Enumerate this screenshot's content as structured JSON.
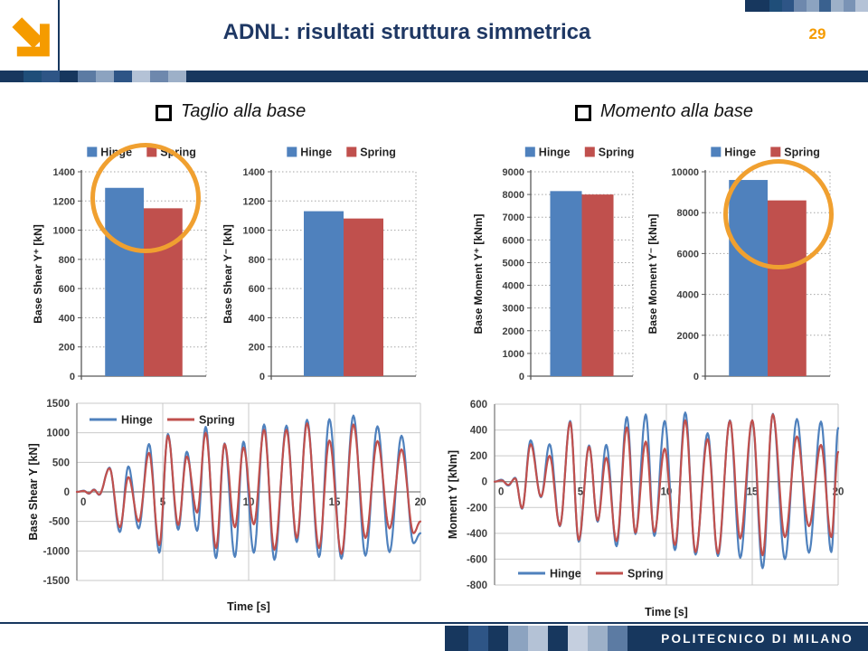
{
  "header": {
    "title": "ADNL: risultati struttura simmetrica",
    "page_number": "29"
  },
  "sections": {
    "left_label": "Taglio alla base",
    "right_label": "Momento alla base"
  },
  "footer": {
    "brand": "POLITECNICO DI MILANO"
  },
  "colors": {
    "navy": "#17375E",
    "title_navy": "#1F3864",
    "accent_orange": "#F59B00",
    "highlight_circle": "#F0A030",
    "hinge_blue": "#4F81BD",
    "spring_red": "#C0504D"
  },
  "decor": {
    "top_right_strip": [
      "#17375E",
      "#17375E",
      "#1F4E79",
      "#2E5586",
      "#6E88AD",
      "#8CA3C0",
      "#3A618F",
      "#9DB0C8",
      "#7A93B5",
      "#B4C2D6"
    ],
    "header_bar_strip": [
      "#1F4E79",
      "#2E5586",
      "#17375E",
      "#5C7BA3",
      "#8CA3C0",
      "#2E5586",
      "#B4C2D6",
      "#6E88AD",
      "#9DB0C8"
    ],
    "footer_strip": [
      "#17375E",
      "#2E5586",
      "#17375E",
      "#8CA3C0",
      "#B4C2D6",
      "#17375E",
      "#C5CFDF",
      "#9DB0C8",
      "#5C7BA3"
    ]
  },
  "chart_data": [
    {
      "id": "base-shear-yplus",
      "type": "bar",
      "ylabel": "Base Shear Y⁺ [kN]",
      "ylim": [
        0,
        1400
      ],
      "ystep": 200,
      "categories": [
        ""
      ],
      "legend_position": "top",
      "grid": "dotted",
      "series": [
        {
          "name": "Hinge",
          "color": "#4F81BD",
          "values": [
            1290
          ]
        },
        {
          "name": "Spring",
          "color": "#C0504D",
          "values": [
            1150
          ]
        }
      ]
    },
    {
      "id": "base-shear-yminus",
      "type": "bar",
      "ylabel": "Base Shear Y⁻ [kN]",
      "ylim": [
        0,
        1400
      ],
      "ystep": 200,
      "categories": [
        ""
      ],
      "legend_position": "top",
      "grid": "dotted",
      "series": [
        {
          "name": "Hinge",
          "color": "#4F81BD",
          "values": [
            1130
          ]
        },
        {
          "name": "Spring",
          "color": "#C0504D",
          "values": [
            1080
          ]
        }
      ]
    },
    {
      "id": "base-moment-yplus",
      "type": "bar",
      "ylabel": "Base Moment Y⁺ [kNm]",
      "ylim": [
        0,
        9000
      ],
      "ystep": 1000,
      "categories": [
        ""
      ],
      "legend_position": "top",
      "grid": "dotted",
      "series": [
        {
          "name": "Hinge",
          "color": "#4F81BD",
          "values": [
            8150
          ]
        },
        {
          "name": "Spring",
          "color": "#C0504D",
          "values": [
            8000
          ]
        }
      ]
    },
    {
      "id": "base-moment-yminus",
      "type": "bar",
      "ylabel": "Base Moment Y⁻ [kNm]",
      "ylim": [
        0,
        10000
      ],
      "ystep": 2000,
      "categories": [
        ""
      ],
      "legend_position": "top",
      "grid": "dotted",
      "series": [
        {
          "name": "Hinge",
          "color": "#4F81BD",
          "values": [
            9600
          ]
        },
        {
          "name": "Spring",
          "color": "#C0504D",
          "values": [
            8600
          ]
        }
      ]
    },
    {
      "id": "base-shear-time-history",
      "type": "line",
      "ylabel": "Base Shear Y [kN]",
      "xlabel": "Time [s]",
      "ylim": [
        -1500,
        1500
      ],
      "ystep": 500,
      "xlim": [
        0,
        20
      ],
      "xstep": 5,
      "legend_position": "top-left",
      "grid": "solid",
      "series": [
        {
          "name": "Hinge",
          "color": "#4F81BD",
          "points": [
            [
              0,
              0
            ],
            [
              0.4,
              20
            ],
            [
              0.7,
              -30
            ],
            [
              1.0,
              40
            ],
            [
              1.3,
              -50
            ],
            [
              1.9,
              410
            ],
            [
              2.5,
              -680
            ],
            [
              3.0,
              430
            ],
            [
              3.6,
              -620
            ],
            [
              4.2,
              810
            ],
            [
              4.8,
              -1030
            ],
            [
              5.3,
              980
            ],
            [
              5.9,
              -640
            ],
            [
              6.4,
              680
            ],
            [
              7.0,
              -660
            ],
            [
              7.5,
              1100
            ],
            [
              8.1,
              -1120
            ],
            [
              8.6,
              820
            ],
            [
              9.2,
              -1100
            ],
            [
              9.7,
              850
            ],
            [
              10.3,
              -1030
            ],
            [
              10.9,
              1140
            ],
            [
              11.5,
              -1150
            ],
            [
              12.2,
              1120
            ],
            [
              12.8,
              -850
            ],
            [
              13.4,
              1220
            ],
            [
              14.1,
              -1100
            ],
            [
              14.7,
              1230
            ],
            [
              15.4,
              -1130
            ],
            [
              16.1,
              1290
            ],
            [
              16.8,
              -1080
            ],
            [
              17.5,
              1110
            ],
            [
              18.2,
              -1020
            ],
            [
              18.9,
              950
            ],
            [
              19.6,
              -870
            ],
            [
              20.0,
              -700
            ]
          ]
        },
        {
          "name": "Spring",
          "color": "#C0504D",
          "points": [
            [
              0,
              0
            ],
            [
              0.4,
              15
            ],
            [
              0.7,
              -25
            ],
            [
              1.0,
              35
            ],
            [
              1.3,
              -45
            ],
            [
              1.9,
              400
            ],
            [
              2.5,
              -600
            ],
            [
              3.0,
              250
            ],
            [
              3.6,
              -500
            ],
            [
              4.2,
              660
            ],
            [
              4.8,
              -900
            ],
            [
              5.3,
              950
            ],
            [
              5.9,
              -560
            ],
            [
              6.4,
              600
            ],
            [
              7.0,
              -350
            ],
            [
              7.5,
              1000
            ],
            [
              8.1,
              -950
            ],
            [
              8.6,
              810
            ],
            [
              9.2,
              -600
            ],
            [
              9.7,
              750
            ],
            [
              10.3,
              -550
            ],
            [
              10.9,
              1050
            ],
            [
              11.5,
              -980
            ],
            [
              12.2,
              1050
            ],
            [
              12.8,
              -780
            ],
            [
              13.4,
              1160
            ],
            [
              14.1,
              -950
            ],
            [
              14.7,
              870
            ],
            [
              15.4,
              -1050
            ],
            [
              16.1,
              1140
            ],
            [
              16.8,
              -780
            ],
            [
              17.5,
              860
            ],
            [
              18.2,
              -620
            ],
            [
              18.9,
              720
            ],
            [
              19.6,
              -700
            ],
            [
              20.0,
              -500
            ]
          ]
        }
      ]
    },
    {
      "id": "base-moment-time-history",
      "type": "line",
      "ylabel": "Moment Y [kNm]",
      "xlabel": "Time [s]",
      "ylim": [
        -800,
        600
      ],
      "ystep": 200,
      "xlim": [
        0,
        20
      ],
      "xstep": 5,
      "legend_position": "bottom-inside",
      "grid": "solid",
      "series": [
        {
          "name": "Hinge",
          "color": "#4F81BD",
          "points": [
            [
              0,
              0
            ],
            [
              0.4,
              15
            ],
            [
              0.8,
              -30
            ],
            [
              1.2,
              30
            ],
            [
              1.6,
              -210
            ],
            [
              2.1,
              320
            ],
            [
              2.7,
              -120
            ],
            [
              3.2,
              290
            ],
            [
              3.8,
              -345
            ],
            [
              4.4,
              470
            ],
            [
              4.9,
              -465
            ],
            [
              5.5,
              280
            ],
            [
              6.0,
              -310
            ],
            [
              6.5,
              285
            ],
            [
              7.1,
              -500
            ],
            [
              7.7,
              500
            ],
            [
              8.2,
              -405
            ],
            [
              8.8,
              520
            ],
            [
              9.3,
              -420
            ],
            [
              9.9,
              470
            ],
            [
              10.5,
              -530
            ],
            [
              11.1,
              535
            ],
            [
              11.7,
              -565
            ],
            [
              12.4,
              375
            ],
            [
              13.0,
              -575
            ],
            [
              13.7,
              475
            ],
            [
              14.3,
              -590
            ],
            [
              15.0,
              475
            ],
            [
              15.6,
              -670
            ],
            [
              16.2,
              525
            ],
            [
              16.9,
              -600
            ],
            [
              17.6,
              485
            ],
            [
              18.3,
              -550
            ],
            [
              19.0,
              465
            ],
            [
              19.6,
              -545
            ],
            [
              20.0,
              415
            ]
          ]
        },
        {
          "name": "Spring",
          "color": "#C0504D",
          "points": [
            [
              0,
              0
            ],
            [
              0.4,
              10
            ],
            [
              0.8,
              -25
            ],
            [
              1.2,
              25
            ],
            [
              1.6,
              -205
            ],
            [
              2.1,
              290
            ],
            [
              2.7,
              -115
            ],
            [
              3.2,
              200
            ],
            [
              3.8,
              -340
            ],
            [
              4.4,
              460
            ],
            [
              4.9,
              -450
            ],
            [
              5.5,
              270
            ],
            [
              6.0,
              -300
            ],
            [
              6.5,
              185
            ],
            [
              7.1,
              -460
            ],
            [
              7.7,
              420
            ],
            [
              8.2,
              -395
            ],
            [
              8.8,
              310
            ],
            [
              9.3,
              -390
            ],
            [
              9.9,
              255
            ],
            [
              10.5,
              -490
            ],
            [
              11.1,
              475
            ],
            [
              11.7,
              -545
            ],
            [
              12.4,
              330
            ],
            [
              13.0,
              -555
            ],
            [
              13.7,
              470
            ],
            [
              14.3,
              -440
            ],
            [
              15.0,
              475
            ],
            [
              15.6,
              -570
            ],
            [
              16.2,
              520
            ],
            [
              16.9,
              -430
            ],
            [
              17.6,
              350
            ],
            [
              18.3,
              -345
            ],
            [
              19.0,
              285
            ],
            [
              19.6,
              -430
            ],
            [
              20.0,
              230
            ]
          ]
        }
      ]
    }
  ]
}
